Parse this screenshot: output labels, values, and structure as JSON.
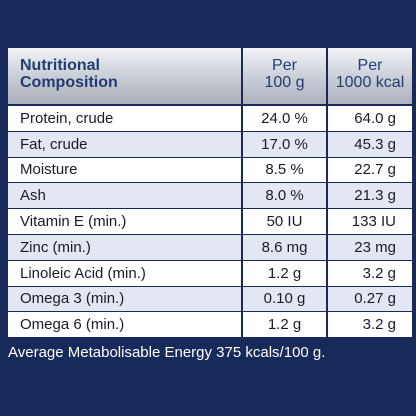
{
  "table": {
    "header": {
      "name_line1": "Nutritional",
      "name_line2": "Composition",
      "per100_line1": "Per",
      "per100_line2": "100 g",
      "per1000_line1": "Per",
      "per1000_line2": "1000 kcal"
    },
    "rows": [
      {
        "name": "Protein, crude",
        "per100": "24.0 %",
        "per1000": "64.0 g"
      },
      {
        "name": "Fat, crude",
        "per100": "17.0 %",
        "per1000": "45.3 g"
      },
      {
        "name": "Moisture",
        "per100": "8.5 %",
        "per1000": "22.7 g"
      },
      {
        "name": "Ash",
        "per100": "8.0 %",
        "per1000": "21.3 g"
      },
      {
        "name": "Vitamin E (min.)",
        "per100": "50 IU",
        "per1000": "133 IU"
      },
      {
        "name": "Zinc (min.)",
        "per100": "8.6 mg",
        "per1000": "23 mg"
      },
      {
        "name": "Linoleic Acid (min.)",
        "per100": "1.2 g",
        "per1000": "3.2 g"
      },
      {
        "name": "Omega 3 (min.)",
        "per100": "0.10 g",
        "per1000": "0.27 g"
      },
      {
        "name": "Omega 6 (min.)",
        "per100": "1.2 g",
        "per1000": "3.2 g"
      }
    ]
  },
  "footer": {
    "text": "Average Metabolisable Energy 375 kcals/100 g."
  },
  "colors": {
    "background": "#182a5a",
    "header_text": "#1f3d73",
    "row_alt": "#e3e7f1"
  }
}
